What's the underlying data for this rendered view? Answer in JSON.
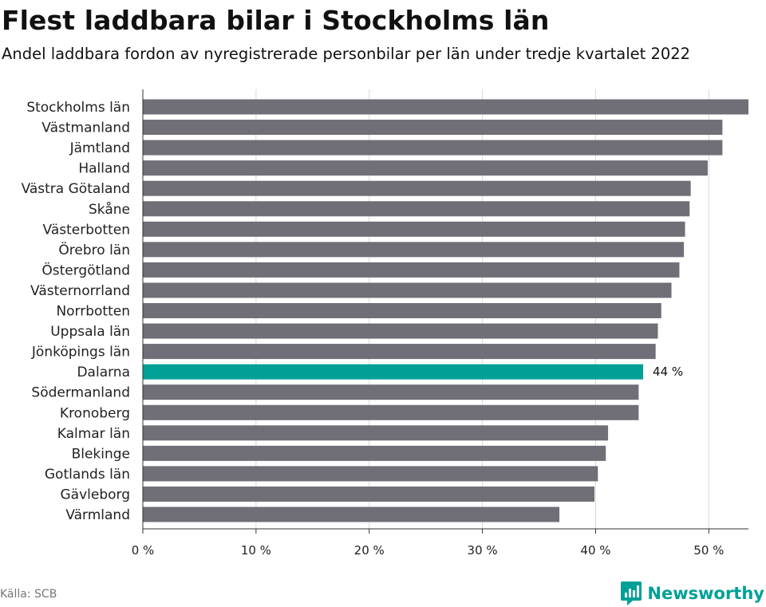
{
  "title": "Flest laddbara bilar i Stockholms län",
  "subtitle": "Andel laddbara fordon av nyregistrerade personbilar per län under tredje kvartalet 2022",
  "source": "Källa: SCB",
  "brand": {
    "name": "Newsworthy",
    "icon": "newsworthy-logo-icon"
  },
  "colors": {
    "bar": "#706e77",
    "highlight": "#00a096",
    "grid": "#d9d9d9",
    "axis": "#333333"
  },
  "chart_data": {
    "type": "bar",
    "orientation": "horizontal",
    "title": "Flest laddbara bilar i Stockholms län",
    "xlabel": "",
    "ylabel": "",
    "xlim": [
      0,
      53.5
    ],
    "xticks": [
      0,
      10,
      20,
      30,
      40,
      50
    ],
    "xtick_labels": [
      "0 %",
      "10 %",
      "20 %",
      "30 %",
      "40 %",
      "50 %"
    ],
    "grid": true,
    "categories": [
      "Stockholms län",
      "Västmanland",
      "Jämtland",
      "Halland",
      "Västra Götaland",
      "Skåne",
      "Västerbotten",
      "Örebro län",
      "Östergötland",
      "Västernorrland",
      "Norrbotten",
      "Uppsala län",
      "Jönköpings län",
      "Dalarna",
      "Södermanland",
      "Kronoberg",
      "Kalmar län",
      "Blekinge",
      "Gotlands län",
      "Gävleborg",
      "Värmland"
    ],
    "values": [
      53.5,
      51.2,
      51.2,
      49.9,
      48.4,
      48.3,
      47.9,
      47.8,
      47.4,
      46.7,
      45.8,
      45.5,
      45.3,
      44.2,
      43.8,
      43.8,
      41.1,
      40.9,
      40.2,
      39.9,
      36.8
    ],
    "highlight": "Dalarna",
    "highlight_label": "44 %"
  }
}
